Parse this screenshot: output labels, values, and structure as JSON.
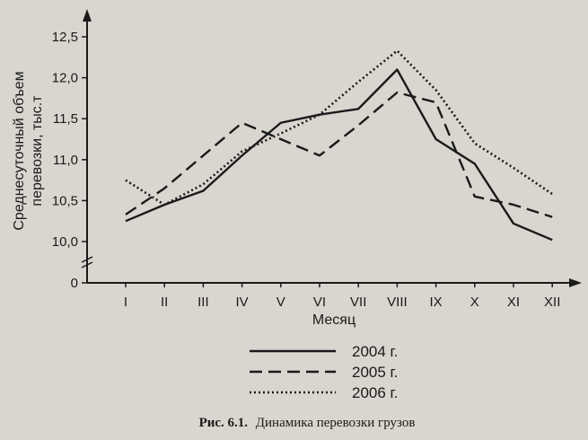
{
  "chart_data": {
    "type": "line",
    "categories": [
      "I",
      "II",
      "III",
      "IV",
      "V",
      "VI",
      "VII",
      "VIII",
      "IX",
      "X",
      "XI",
      "XII"
    ],
    "yticks": [
      "0",
      "10,0",
      "10,5",
      "11,0",
      "11,5",
      "12,0",
      "12,5"
    ],
    "xlabel": "Месяц",
    "ylabel_line1": "Среднесуточный объем",
    "ylabel_line2": "перевозки, тыс.т",
    "ylim": [
      9.75,
      12.75
    ],
    "axis_break": true,
    "grid": false,
    "legend_position": "bottom-center",
    "series": [
      {
        "name": "2004 г.",
        "style": "solid",
        "values": [
          10.25,
          10.45,
          10.62,
          11.05,
          11.45,
          11.55,
          11.62,
          12.1,
          11.25,
          10.95,
          10.22,
          10.02
        ]
      },
      {
        "name": "2005 г.",
        "style": "dashed",
        "values": [
          10.33,
          10.65,
          11.05,
          11.45,
          11.25,
          11.05,
          11.42,
          11.82,
          11.7,
          10.55,
          10.45,
          10.3
        ]
      },
      {
        "name": "2006 г.",
        "style": "dotted",
        "values": [
          10.75,
          10.45,
          10.7,
          11.1,
          11.32,
          11.55,
          11.95,
          12.33,
          11.85,
          11.2,
          10.9,
          10.58
        ]
      }
    ]
  },
  "caption": {
    "figure_number": "Рис. 6.1.",
    "text": "Динамика перевозки грузов"
  },
  "colors": {
    "ink": "#1a1a1a",
    "paper": "#d9d6cf"
  }
}
